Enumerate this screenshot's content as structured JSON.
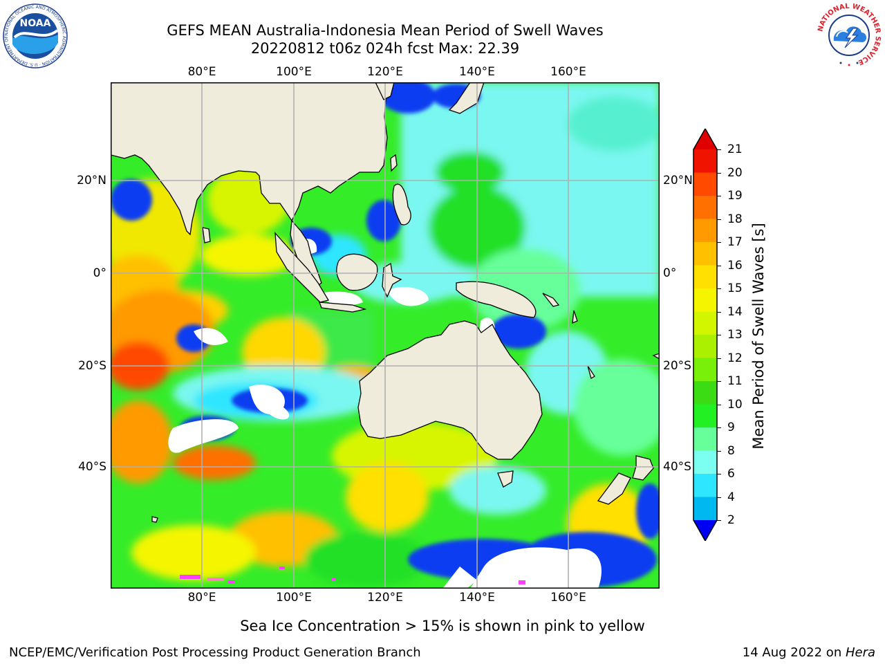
{
  "title": {
    "line1": "GEFS MEAN Australia-Indonesia Mean Period of Swell Waves",
    "line2": "20220812 t06z 024h fcst   Max: 22.39"
  },
  "axes": {
    "lon_labels": [
      "80°E",
      "100°E",
      "120°E",
      "140°E",
      "160°E"
    ],
    "lat_labels": [
      "20°N",
      "0°",
      "20°S",
      "40°S"
    ]
  },
  "colorbar": {
    "label": "Mean Period of Swell Waves [s]",
    "ticks": [
      "2",
      "4",
      "6",
      "8",
      "9",
      "10",
      "11",
      "12",
      "13",
      "14",
      "15",
      "16",
      "17",
      "18",
      "19",
      "20",
      "21"
    ],
    "colors": [
      "#0a3cf0",
      "#00b8f0",
      "#2ee6ff",
      "#7afff0",
      "#66ff9a",
      "#22f022",
      "#3cdc14",
      "#78f00a",
      "#aaf000",
      "#d2f500",
      "#f5f500",
      "#ffe000",
      "#ffc000",
      "#ff9a00",
      "#ff7000",
      "#ff4a00",
      "#f01400"
    ],
    "low_color": "#0000f5",
    "high_color": "#e00000"
  },
  "note": "Sea Ice Concentration > 15% is shown in pink to yellow",
  "footer": {
    "left": "NCEP/EMC/Verification Post Processing Product Generation Branch",
    "right_date": "14 Aug 2022 on ",
    "right_host": "Hera"
  },
  "logos": {
    "noaa_text": "NOAA",
    "noaa_ring": "NATIONAL OCEANIC AND ATMOSPHERIC ADMINISTRATION · U.S. DEPARTMENT OF COMMERCE",
    "nws_ring": "NATIONAL WEATHER SERVICE"
  }
}
